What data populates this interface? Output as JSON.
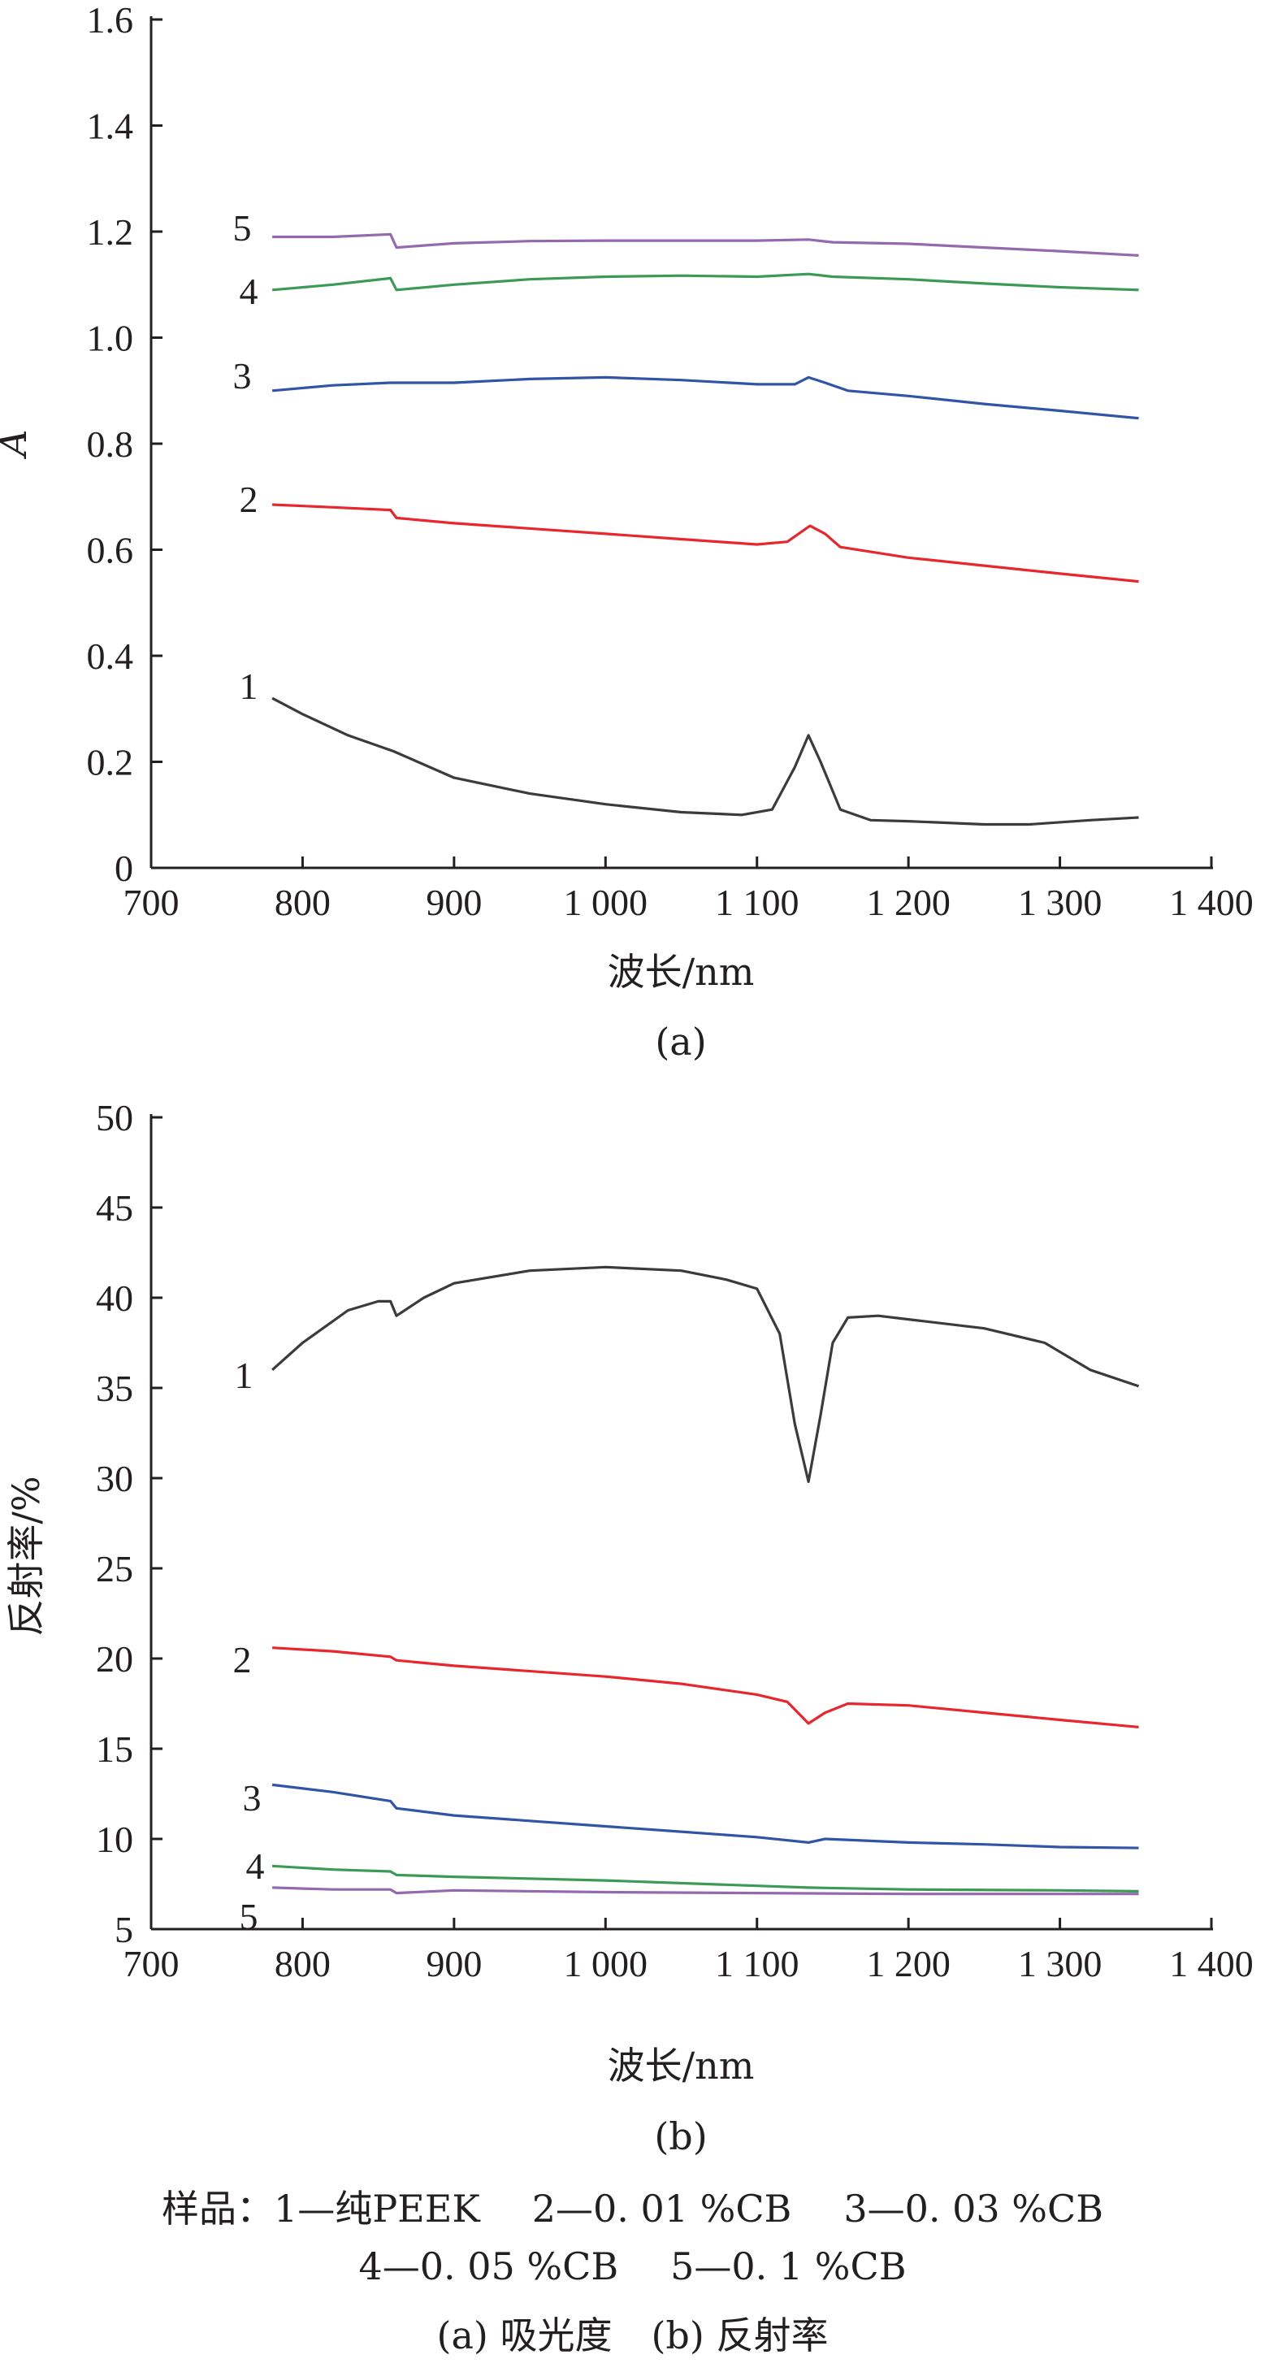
{
  "chart_data": [
    {
      "type": "line",
      "panel_label": "(a)",
      "xlabel": "波长/nm",
      "ylabel": "A",
      "xlim": [
        700,
        1400
      ],
      "ylim": [
        0,
        1.6
      ],
      "x_ticks": [
        "700",
        "800",
        "900",
        "1 000",
        "1 100",
        "1 200",
        "1 300",
        "1 400"
      ],
      "y_ticks": [
        "0",
        "0.2",
        "0.4",
        "0.6",
        "0.8",
        "1.0",
        "1.2",
        "1.4",
        "1.6"
      ],
      "series": [
        {
          "name": "1",
          "color": "#3d3a3b",
          "points": [
            [
              780,
              0.32
            ],
            [
              800,
              0.29
            ],
            [
              830,
              0.25
            ],
            [
              860,
              0.22
            ],
            [
              900,
              0.17
            ],
            [
              950,
              0.14
            ],
            [
              1000,
              0.12
            ],
            [
              1050,
              0.105
            ],
            [
              1090,
              0.1
            ],
            [
              1110,
              0.11
            ],
            [
              1125,
              0.19
            ],
            [
              1134,
              0.25
            ],
            [
              1142,
              0.2
            ],
            [
              1155,
              0.11
            ],
            [
              1175,
              0.09
            ],
            [
              1200,
              0.088
            ],
            [
              1250,
              0.082
            ],
            [
              1280,
              0.082
            ],
            [
              1320,
              0.09
            ],
            [
              1352,
              0.095
            ]
          ]
        },
        {
          "name": "2",
          "color": "#e8262b",
          "points": [
            [
              780,
              0.685
            ],
            [
              820,
              0.68
            ],
            [
              858,
              0.675
            ],
            [
              862,
              0.66
            ],
            [
              900,
              0.65
            ],
            [
              1000,
              0.63
            ],
            [
              1050,
              0.62
            ],
            [
              1100,
              0.61
            ],
            [
              1120,
              0.615
            ],
            [
              1135,
              0.645
            ],
            [
              1145,
              0.63
            ],
            [
              1155,
              0.605
            ],
            [
              1200,
              0.585
            ],
            [
              1250,
              0.57
            ],
            [
              1300,
              0.555
            ],
            [
              1352,
              0.54
            ]
          ]
        },
        {
          "name": "3",
          "color": "#3155a6",
          "points": [
            [
              780,
              0.9
            ],
            [
              820,
              0.91
            ],
            [
              858,
              0.915
            ],
            [
              900,
              0.915
            ],
            [
              950,
              0.922
            ],
            [
              1000,
              0.925
            ],
            [
              1050,
              0.92
            ],
            [
              1100,
              0.912
            ],
            [
              1125,
              0.912
            ],
            [
              1134,
              0.925
            ],
            [
              1145,
              0.915
            ],
            [
              1160,
              0.9
            ],
            [
              1200,
              0.89
            ],
            [
              1250,
              0.875
            ],
            [
              1300,
              0.862
            ],
            [
              1352,
              0.848
            ]
          ]
        },
        {
          "name": "4",
          "color": "#3c9a57",
          "points": [
            [
              780,
              1.09
            ],
            [
              820,
              1.1
            ],
            [
              858,
              1.112
            ],
            [
              862,
              1.09
            ],
            [
              900,
              1.1
            ],
            [
              950,
              1.11
            ],
            [
              1000,
              1.115
            ],
            [
              1050,
              1.117
            ],
            [
              1100,
              1.115
            ],
            [
              1134,
              1.12
            ],
            [
              1150,
              1.115
            ],
            [
              1200,
              1.11
            ],
            [
              1250,
              1.102
            ],
            [
              1300,
              1.095
            ],
            [
              1352,
              1.09
            ]
          ]
        },
        {
          "name": "5",
          "color": "#9469ad",
          "points": [
            [
              780,
              1.19
            ],
            [
              820,
              1.19
            ],
            [
              858,
              1.195
            ],
            [
              862,
              1.17
            ],
            [
              900,
              1.178
            ],
            [
              950,
              1.182
            ],
            [
              1000,
              1.183
            ],
            [
              1050,
              1.183
            ],
            [
              1100,
              1.183
            ],
            [
              1134,
              1.185
            ],
            [
              1150,
              1.18
            ],
            [
              1200,
              1.177
            ],
            [
              1250,
              1.17
            ],
            [
              1300,
              1.163
            ],
            [
              1352,
              1.155
            ]
          ]
        }
      ],
      "curve_labels": [
        "1",
        "2",
        "3",
        "4",
        "5"
      ]
    },
    {
      "type": "line",
      "panel_label": "(b)",
      "xlabel": "波长/nm",
      "ylabel": "反射率/%",
      "xlim": [
        700,
        1400
      ],
      "ylim": [
        5,
        50
      ],
      "x_ticks": [
        "700",
        "800",
        "900",
        "1 000",
        "1 100",
        "1 200",
        "1 300",
        "1 400"
      ],
      "y_ticks": [
        "5",
        "10",
        "15",
        "20",
        "25",
        "30",
        "35",
        "40",
        "45",
        "50"
      ],
      "series": [
        {
          "name": "1",
          "color": "#3d3a3b",
          "points": [
            [
              780,
              36.0
            ],
            [
              800,
              37.5
            ],
            [
              830,
              39.3
            ],
            [
              850,
              39.8
            ],
            [
              858,
              39.8
            ],
            [
              862,
              39.0
            ],
            [
              880,
              40.0
            ],
            [
              900,
              40.8
            ],
            [
              950,
              41.5
            ],
            [
              1000,
              41.7
            ],
            [
              1050,
              41.5
            ],
            [
              1080,
              41.0
            ],
            [
              1100,
              40.5
            ],
            [
              1115,
              38.0
            ],
            [
              1125,
              33.0
            ],
            [
              1134,
              29.8
            ],
            [
              1142,
              33.5
            ],
            [
              1150,
              37.5
            ],
            [
              1160,
              38.9
            ],
            [
              1180,
              39.0
            ],
            [
              1200,
              38.8
            ],
            [
              1250,
              38.3
            ],
            [
              1290,
              37.5
            ],
            [
              1320,
              36.0
            ],
            [
              1352,
              35.1
            ]
          ]
        },
        {
          "name": "2",
          "color": "#e8262b",
          "points": [
            [
              780,
              20.6
            ],
            [
              820,
              20.4
            ],
            [
              858,
              20.1
            ],
            [
              862,
              19.9
            ],
            [
              900,
              19.6
            ],
            [
              1000,
              19.0
            ],
            [
              1050,
              18.6
            ],
            [
              1100,
              18.0
            ],
            [
              1120,
              17.6
            ],
            [
              1134,
              16.4
            ],
            [
              1145,
              17.0
            ],
            [
              1160,
              17.5
            ],
            [
              1200,
              17.4
            ],
            [
              1250,
              17.0
            ],
            [
              1300,
              16.6
            ],
            [
              1352,
              16.2
            ]
          ]
        },
        {
          "name": "3",
          "color": "#3155a6",
          "points": [
            [
              780,
              13.0
            ],
            [
              820,
              12.6
            ],
            [
              858,
              12.1
            ],
            [
              862,
              11.7
            ],
            [
              900,
              11.3
            ],
            [
              950,
              11.0
            ],
            [
              1000,
              10.7
            ],
            [
              1050,
              10.4
            ],
            [
              1100,
              10.1
            ],
            [
              1134,
              9.8
            ],
            [
              1145,
              10.0
            ],
            [
              1200,
              9.8
            ],
            [
              1250,
              9.7
            ],
            [
              1300,
              9.55
            ],
            [
              1352,
              9.5
            ]
          ]
        },
        {
          "name": "4",
          "color": "#3c9a57",
          "points": [
            [
              780,
              8.5
            ],
            [
              820,
              8.3
            ],
            [
              858,
              8.2
            ],
            [
              862,
              8.0
            ],
            [
              900,
              7.9
            ],
            [
              1000,
              7.7
            ],
            [
              1100,
              7.4
            ],
            [
              1134,
              7.3
            ],
            [
              1200,
              7.2
            ],
            [
              1300,
              7.15
            ],
            [
              1352,
              7.1
            ]
          ]
        },
        {
          "name": "5",
          "color": "#9469ad",
          "points": [
            [
              780,
              7.3
            ],
            [
              820,
              7.2
            ],
            [
              858,
              7.2
            ],
            [
              862,
              7.0
            ],
            [
              900,
              7.15
            ],
            [
              1000,
              7.05
            ],
            [
              1100,
              7.0
            ],
            [
              1200,
              6.95
            ],
            [
              1300,
              6.95
            ],
            [
              1352,
              6.95
            ]
          ]
        }
      ],
      "curve_labels": [
        "1",
        "2",
        "3",
        "4",
        "5"
      ]
    }
  ],
  "caption": {
    "line1": [
      "样品：1—纯PEEK",
      "2—0. 01 %CB",
      "3—0. 03 %CB"
    ],
    "line2": [
      "4—0. 05 %CB",
      "5—0. 1 %CB"
    ],
    "line3": [
      "(a) 吸光度",
      "(b) 反射率"
    ]
  }
}
